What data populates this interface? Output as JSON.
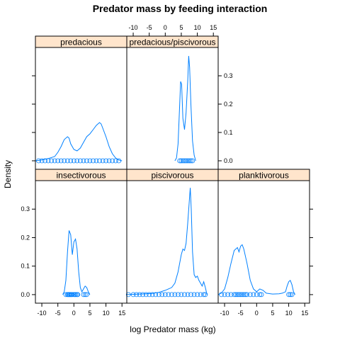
{
  "chart_data": {
    "type": "density",
    "title": "Predator mass by feeding interaction",
    "xlabel": "log Predator mass (kg)",
    "ylabel": "Density",
    "xlim": [
      -12,
      16.5
    ],
    "ylim": [
      -0.03,
      0.4
    ],
    "x_ticks": [
      -10,
      -5,
      0,
      5,
      10,
      15
    ],
    "y_ticks": [
      0.0,
      0.1,
      0.2,
      0.3
    ],
    "layout": "3 columns x 2 rows, bottom row first",
    "colors": {
      "line": "#0080ff",
      "strip": "#ffe5cc"
    },
    "panels": [
      {
        "name": "insectivorous",
        "density": [
          [
            -3.5,
            0.0
          ],
          [
            -3,
            0.01
          ],
          [
            -2.5,
            0.05
          ],
          [
            -2,
            0.15
          ],
          [
            -1.5,
            0.225
          ],
          [
            -1,
            0.21
          ],
          [
            -0.5,
            0.14
          ],
          [
            0,
            0.185
          ],
          [
            0.5,
            0.195
          ],
          [
            1,
            0.16
          ],
          [
            1.5,
            0.08
          ],
          [
            2,
            0.025
          ],
          [
            2.5,
            0.01
          ],
          [
            3,
            0.02
          ],
          [
            3.5,
            0.03
          ],
          [
            4,
            0.025
          ],
          [
            4.5,
            0.01
          ],
          [
            5,
            0.0
          ]
        ],
        "rug": [
          -2.5,
          -2,
          -1.8,
          -1.5,
          -1.3,
          -1,
          -0.8,
          -0.5,
          0,
          0.3,
          0.6,
          1,
          1.2,
          3,
          3.5,
          4
        ]
      },
      {
        "name": "piscivorous",
        "density": [
          [
            -12,
            0.0
          ],
          [
            -8,
            0.002
          ],
          [
            -4,
            0.004
          ],
          [
            -2,
            0.008
          ],
          [
            0,
            0.015
          ],
          [
            1,
            0.02
          ],
          [
            2,
            0.025
          ],
          [
            3,
            0.04
          ],
          [
            4,
            0.08
          ],
          [
            5,
            0.14
          ],
          [
            5.5,
            0.16
          ],
          [
            6,
            0.155
          ],
          [
            6.5,
            0.18
          ],
          [
            7,
            0.25
          ],
          [
            7.5,
            0.33
          ],
          [
            7.8,
            0.375
          ],
          [
            8.1,
            0.3
          ],
          [
            8.5,
            0.15
          ],
          [
            9,
            0.07
          ],
          [
            9.5,
            0.06
          ],
          [
            10,
            0.065
          ],
          [
            10.5,
            0.05
          ],
          [
            11,
            0.04
          ],
          [
            11.5,
            0.03
          ],
          [
            12,
            0.045
          ],
          [
            12.5,
            0.025
          ],
          [
            13,
            0.0
          ]
        ],
        "rug": [
          -11.5,
          -10,
          -9,
          -8,
          -7,
          -6,
          -5,
          -4,
          -3,
          -2,
          -1,
          0,
          1,
          2,
          3,
          4,
          5,
          6,
          7,
          8,
          9,
          10,
          11,
          12,
          12.5
        ]
      },
      {
        "name": "planktivorous",
        "density": [
          [
            -12,
            0.0
          ],
          [
            -11,
            0.005
          ],
          [
            -10,
            0.02
          ],
          [
            -9,
            0.06
          ],
          [
            -8,
            0.11
          ],
          [
            -7,
            0.155
          ],
          [
            -6,
            0.165
          ],
          [
            -5.5,
            0.15
          ],
          [
            -5,
            0.17
          ],
          [
            -4.5,
            0.175
          ],
          [
            -4,
            0.16
          ],
          [
            -3,
            0.11
          ],
          [
            -2,
            0.05
          ],
          [
            -1,
            0.02
          ],
          [
            0,
            0.01
          ],
          [
            1,
            0.02
          ],
          [
            2,
            0.015
          ],
          [
            3,
            0.005
          ],
          [
            5,
            0.002
          ],
          [
            7,
            0.003
          ],
          [
            8,
            0.005
          ],
          [
            9,
            0.01
          ],
          [
            9.5,
            0.03
          ],
          [
            10,
            0.045
          ],
          [
            10.5,
            0.05
          ],
          [
            11,
            0.035
          ],
          [
            11.5,
            0.01
          ],
          [
            12,
            0.0
          ]
        ],
        "rug": [
          -11,
          -10,
          -9,
          -8,
          -7,
          -6.5,
          -6,
          -5.5,
          -5,
          -4.5,
          -4,
          -3.5,
          -3,
          -2,
          -1,
          0,
          1,
          1.5,
          10,
          10.5,
          11
        ]
      },
      {
        "name": "predacious",
        "density": [
          [
            -12,
            0.0
          ],
          [
            -10,
            0.003
          ],
          [
            -8,
            0.008
          ],
          [
            -6,
            0.015
          ],
          [
            -5,
            0.03
          ],
          [
            -4,
            0.05
          ],
          [
            -3,
            0.075
          ],
          [
            -2,
            0.085
          ],
          [
            -1.5,
            0.08
          ],
          [
            -1,
            0.06
          ],
          [
            0,
            0.04
          ],
          [
            1,
            0.035
          ],
          [
            2,
            0.045
          ],
          [
            3,
            0.065
          ],
          [
            4,
            0.085
          ],
          [
            5,
            0.095
          ],
          [
            6,
            0.11
          ],
          [
            7,
            0.125
          ],
          [
            8,
            0.135
          ],
          [
            8.5,
            0.13
          ],
          [
            9,
            0.115
          ],
          [
            10,
            0.085
          ],
          [
            11,
            0.05
          ],
          [
            12,
            0.025
          ],
          [
            13,
            0.01
          ],
          [
            14,
            0.003
          ],
          [
            15,
            0.0
          ]
        ],
        "rug": [
          -11,
          -10,
          -9,
          -8,
          -7,
          -6,
          -5,
          -4,
          -3,
          -2,
          -1,
          0,
          1,
          2,
          3,
          4,
          5,
          6,
          7,
          8,
          9,
          10,
          11,
          12,
          13,
          14
        ]
      },
      {
        "name": "predacious/piscivorous",
        "density": [
          [
            3,
            0.0
          ],
          [
            3.5,
            0.01
          ],
          [
            4,
            0.06
          ],
          [
            4.5,
            0.2
          ],
          [
            4.8,
            0.28
          ],
          [
            5.1,
            0.27
          ],
          [
            5.5,
            0.15
          ],
          [
            6,
            0.11
          ],
          [
            6.5,
            0.17
          ],
          [
            7,
            0.28
          ],
          [
            7.3,
            0.37
          ],
          [
            7.6,
            0.33
          ],
          [
            8,
            0.2
          ],
          [
            8.5,
            0.07
          ],
          [
            9,
            0.02
          ],
          [
            9.5,
            0.0
          ]
        ],
        "rug": [
          4.5,
          5,
          5.5,
          6,
          6.5,
          7,
          7.5,
          8,
          8.5
        ]
      }
    ]
  }
}
